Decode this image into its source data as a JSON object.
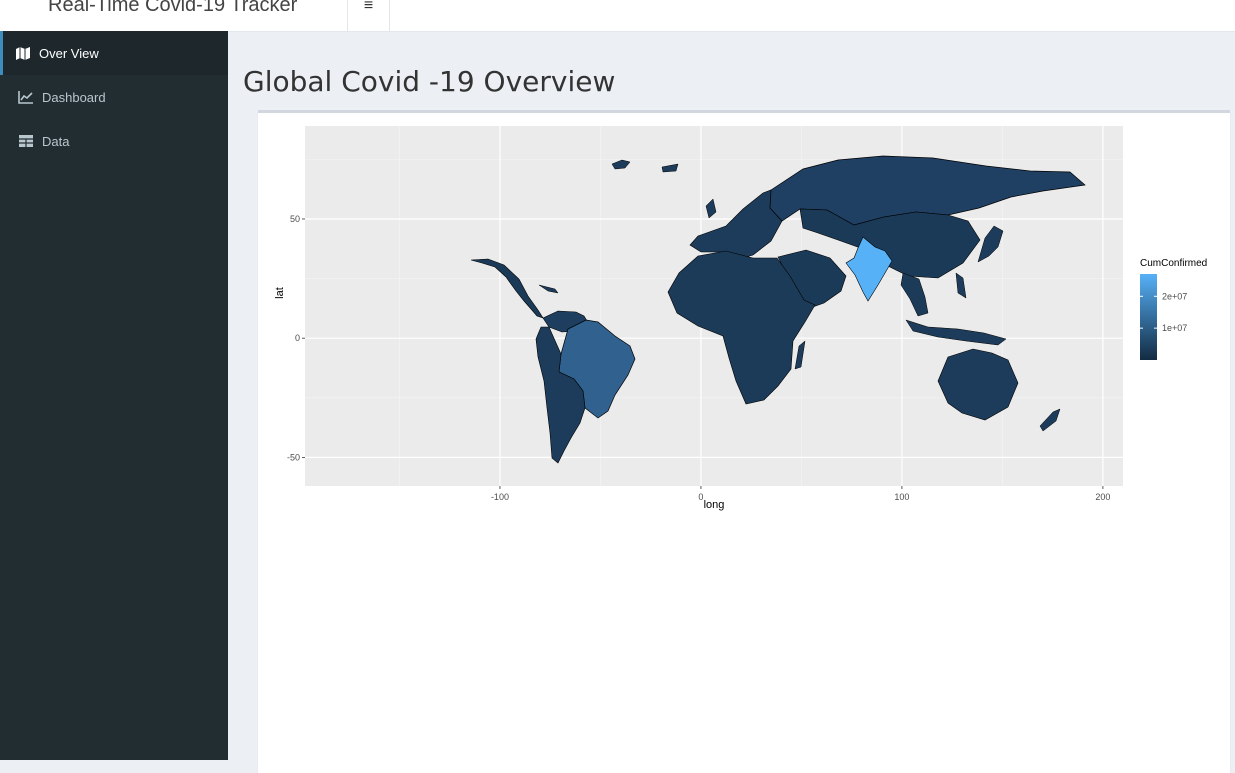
{
  "header": {
    "app_title": "Real-Time Covid-19 Tracker",
    "menu_icon": "hamburger-icon",
    "menu_glyph": "≡"
  },
  "sidebar": {
    "items": [
      {
        "label": "Over View",
        "icon": "map-icon",
        "active": true
      },
      {
        "label": "Dashboard",
        "icon": "line-chart-icon",
        "active": false
      },
      {
        "label": "Data",
        "icon": "table-icon",
        "active": false
      }
    ]
  },
  "main": {
    "title": "Global Covid -19 Overview"
  },
  "colors": {
    "sidebar_bg": "#222d32",
    "sidebar_active": "#1e282c",
    "accent": "#3c8dbc",
    "panel_bg": "#ebebeb",
    "low": "#132b43",
    "high": "#56b1f7"
  },
  "chart_data": {
    "type": "choropleth map",
    "xlabel": "long",
    "ylabel": "lat",
    "x_ticks": [
      "-100",
      "0",
      "100",
      "200"
    ],
    "y_ticks": [
      "-50",
      "0",
      "50"
    ],
    "xlim": [
      -197,
      210
    ],
    "ylim": [
      -62,
      89
    ],
    "grid": true,
    "legend": {
      "title": "CumConfirmed",
      "placement": "right",
      "labels": [
        "2e+07",
        "1e+07"
      ],
      "breaks": [
        20000000,
        10000000
      ],
      "range": [
        0,
        27000000
      ]
    }
  }
}
